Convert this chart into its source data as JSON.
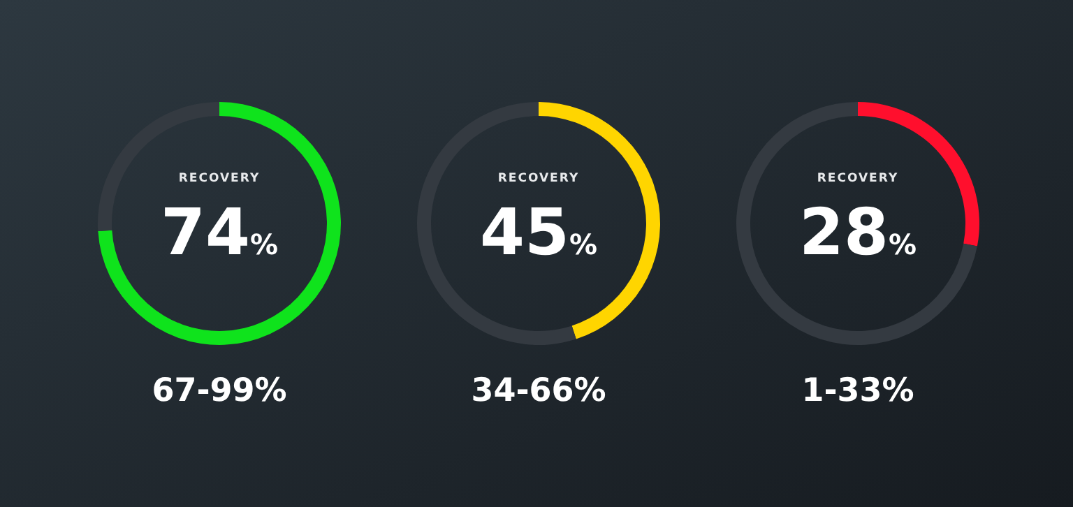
{
  "chart_data": [
    {
      "type": "donut",
      "title": "RECOVERY",
      "categories": [
        null,
        null
      ],
      "values": [
        74,
        26
      ],
      "colors": [
        "#0fe31c",
        "#343a41"
      ],
      "annotations": [
        "74%",
        "67-99%"
      ]
    },
    {
      "type": "donut",
      "title": "RECOVERY",
      "categories": [
        null,
        null
      ],
      "values": [
        45,
        55
      ],
      "colors": [
        "#ffd500",
        "#343a41"
      ],
      "annotations": [
        "45%",
        "34-66%"
      ]
    },
    {
      "type": "donut",
      "title": "RECOVERY",
      "categories": [
        null,
        null
      ],
      "values": [
        28,
        72
      ],
      "colors": [
        "#ff0f2d",
        "#343a41"
      ],
      "annotations": [
        "28%",
        "1-33%"
      ]
    }
  ]
}
